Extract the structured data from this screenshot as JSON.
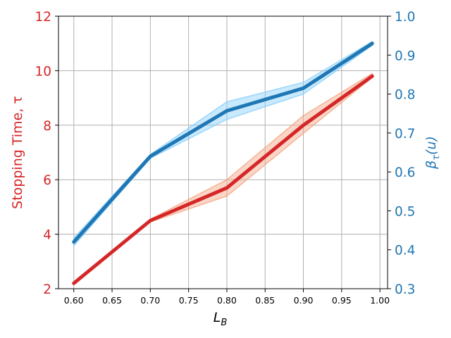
{
  "chart_data": {
    "type": "line",
    "x": [
      0.6,
      0.7,
      0.8,
      0.9,
      0.99
    ],
    "xlabel_main": "L",
    "xlabel_sub": "B",
    "xlim": [
      0.58,
      1.01
    ],
    "xticks": [
      0.6,
      0.65,
      0.7,
      0.75,
      0.8,
      0.85,
      0.9,
      0.95,
      1.0
    ],
    "xtick_labels": [
      "0.60",
      "0.65",
      "0.70",
      "0.75",
      "0.80",
      "0.85",
      "0.90",
      "0.95",
      "1.00"
    ],
    "grid": true,
    "left_axis": {
      "label": "Stopping Time, τ",
      "color": "#d62728",
      "ylim": [
        2,
        12
      ],
      "ticks": [
        2,
        4,
        6,
        8,
        10,
        12
      ],
      "tick_labels": [
        "2",
        "4",
        "6",
        "8",
        "10",
        "12"
      ]
    },
    "right_axis": {
      "label_main": "β",
      "label_sub": "τ",
      "label_rest": "(u)",
      "color": "#1f77b4",
      "ylim": [
        0.3,
        1.0
      ],
      "ticks": [
        0.3,
        0.4,
        0.5,
        0.6,
        0.7,
        0.8,
        0.9,
        1.0
      ],
      "tick_labels": [
        "0.3",
        "0.4",
        "0.5",
        "0.6",
        "0.7",
        "0.8",
        "0.9",
        "1.0"
      ]
    },
    "series": [
      {
        "axis": "left",
        "color": "#d62728",
        "band_color": "#f4a582",
        "values": [
          2.2,
          4.5,
          5.7,
          8.0,
          9.8
        ],
        "lower": [
          2.2,
          4.45,
          5.4,
          7.7,
          9.75
        ],
        "upper": [
          2.2,
          4.55,
          6.0,
          8.35,
          9.9
        ]
      },
      {
        "axis": "right",
        "color": "#1f77b4",
        "band_color": "#87cefa",
        "values": [
          0.42,
          0.64,
          0.757,
          0.815,
          0.93
        ],
        "lower": [
          0.41,
          0.635,
          0.735,
          0.8,
          0.925
        ],
        "upper": [
          0.43,
          0.645,
          0.78,
          0.83,
          0.935
        ]
      }
    ]
  }
}
